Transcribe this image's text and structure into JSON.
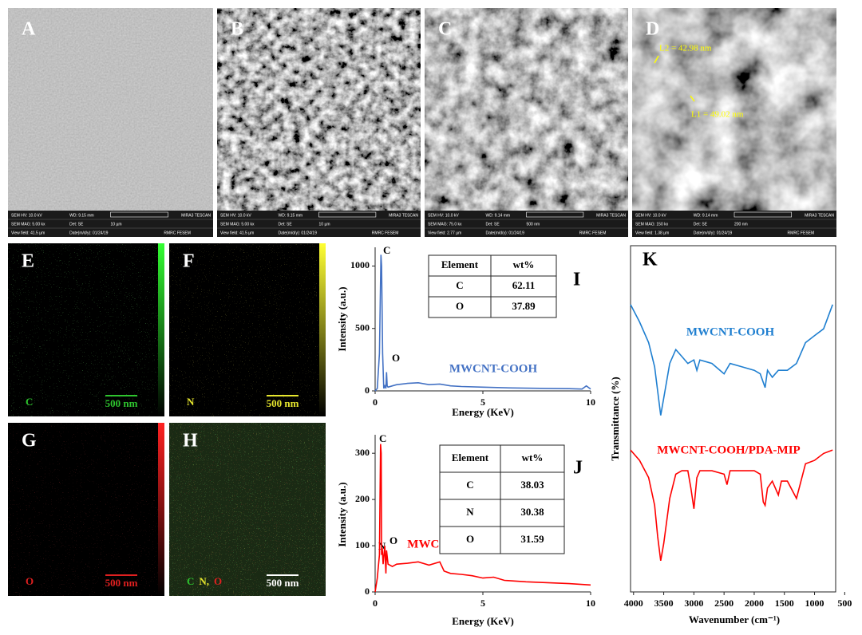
{
  "sem_panels": [
    {
      "label": "A",
      "info": [
        [
          "SEM HV: 10.0 kV",
          "WD: 9.15 mm",
          "MIRA3 TESCAN"
        ],
        [
          "SEM MAG: 5.00 kx",
          "Det: SE",
          "10 µm"
        ],
        [
          "View field: 41.5 µm",
          "Date(m/d/y): 01/24/19",
          "RMRC FESEM"
        ]
      ]
    },
    {
      "label": "B",
      "info": [
        [
          "SEM HV: 10.0 kV",
          "WD: 9.15 mm",
          "MIRA3 TESCAN"
        ],
        [
          "SEM MAG: 5.00 kx",
          "Det: SE",
          "10 µm"
        ],
        [
          "View field: 41.5 µm",
          "Date(m/d/y): 01/24/19",
          "RMRC FESEM"
        ]
      ]
    },
    {
      "label": "C",
      "info": [
        [
          "SEM HV: 10.0 kV",
          "WD: 9.14 mm",
          "MIRA3 TESCAN"
        ],
        [
          "SEM MAG: 75.0 kx",
          "Det: SE",
          "500 nm"
        ],
        [
          "View field: 2.77 µm",
          "Date(m/d/y): 01/24/19",
          "RMRC FESEM"
        ]
      ]
    },
    {
      "label": "D",
      "info": [
        [
          "SEM HV: 10.0 kV",
          "WD: 9.14 mm",
          "MIRA3 TESCAN"
        ],
        [
          "SEM MAG: 150 kx",
          "Det: SE",
          "200 nm"
        ],
        [
          "View field: 1.38 µm",
          "Date(m/d/y): 01/24/19",
          "RMRC FESEM"
        ]
      ],
      "measurements": [
        "L2 = 42.98 nm",
        "L1 = 49.02 nm"
      ]
    }
  ],
  "map_panels": [
    {
      "label": "E",
      "element": [
        {
          "text": "C",
          "color": "#2ec42e"
        }
      ],
      "scale": "500 nm",
      "color": "#2ec42e"
    },
    {
      "label": "F",
      "element": [
        {
          "text": "N",
          "color": "#e6e62e"
        }
      ],
      "scale": "500 nm",
      "color": "#e6e62e"
    },
    {
      "label": "G",
      "element": [
        {
          "text": "O",
          "color": "#e02020"
        }
      ],
      "scale": "500 nm",
      "color": "#e02020"
    },
    {
      "label": "H",
      "element": [
        {
          "text": "C",
          "color": "#2ec42e"
        },
        {
          "text": "N,",
          "color": "#e6e62e"
        },
        {
          "text": "O",
          "color": "#e02020"
        }
      ],
      "scale": "500 nm"
    }
  ],
  "chart_data": [
    {
      "type": "line",
      "panel_label": "I",
      "x_label": "Energy (KeV)",
      "y_label": "Intensity (a.u.)",
      "xlim": [
        0,
        10
      ],
      "ylim": [
        0,
        1150
      ],
      "xticks": [
        0,
        5,
        10
      ],
      "yticks": [
        0,
        500,
        1000
      ],
      "annotations": [
        "C",
        "O"
      ],
      "table": {
        "header": [
          "Element",
          "wt%"
        ],
        "rows": [
          [
            "C",
            62.11
          ],
          [
            "O",
            37.89
          ]
        ]
      },
      "series": [
        {
          "name": "MWCNT-COOH",
          "color": "#4472c4",
          "x": [
            0,
            0.1,
            0.2,
            0.27,
            0.3,
            0.35,
            0.4,
            0.45,
            0.5,
            0.53,
            0.56,
            0.6,
            0.8,
            1,
            1.5,
            2,
            2.5,
            3,
            3.5,
            4,
            5,
            6,
            7,
            8,
            9,
            9.6,
            9.8,
            10
          ],
          "values": [
            0,
            20,
            300,
            1090,
            1000,
            300,
            20,
            40,
            20,
            150,
            40,
            30,
            40,
            50,
            60,
            65,
            50,
            55,
            40,
            35,
            30,
            25,
            22,
            20,
            18,
            15,
            40,
            15
          ]
        }
      ]
    },
    {
      "type": "line",
      "panel_label": "J",
      "x_label": "Energy (KeV)",
      "y_label": "Intensity (a.u.)",
      "xlim": [
        0,
        10
      ],
      "ylim": [
        0,
        340
      ],
      "xticks": [
        0,
        5,
        10
      ],
      "yticks": [
        0,
        100,
        200,
        300
      ],
      "annotations": [
        "C",
        "N",
        "O"
      ],
      "table": {
        "header": [
          "Element",
          "wt%"
        ],
        "rows": [
          [
            "C",
            38.03
          ],
          [
            "N",
            30.38
          ],
          [
            "O",
            31.59
          ]
        ]
      },
      "series": [
        {
          "name": "MWCNT-COOH/PDA-MIP",
          "color": "#ff0000",
          "x": [
            0,
            0.1,
            0.2,
            0.25,
            0.28,
            0.3,
            0.33,
            0.37,
            0.45,
            0.5,
            0.53,
            0.6,
            0.8,
            1,
            1.5,
            2,
            2.5,
            3,
            3.2,
            3.5,
            4,
            4.5,
            5,
            5.5,
            6,
            7,
            8,
            9,
            10
          ],
          "values": [
            0,
            30,
            80,
            320,
            300,
            80,
            95,
            60,
            100,
            40,
            90,
            60,
            55,
            60,
            62,
            65,
            58,
            65,
            45,
            40,
            38,
            35,
            30,
            32,
            25,
            22,
            20,
            18,
            15
          ]
        }
      ]
    },
    {
      "type": "line",
      "panel_label": "K",
      "x_label": "Wavenumber (cm⁻¹)",
      "y_label": "Transmittance (%)",
      "xlim": [
        4050,
        650
      ],
      "ylim": [
        0,
        100
      ],
      "xticks": [
        4000,
        3500,
        3000,
        2500,
        2000,
        1500,
        1000,
        500
      ],
      "series": [
        {
          "name": "MWCNT-COOH",
          "color": "#1f7fd0",
          "x": [
            4050,
            3900,
            3750,
            3650,
            3600,
            3550,
            3500,
            3400,
            3300,
            3200,
            3100,
            3000,
            2950,
            2900,
            2700,
            2500,
            2400,
            2200,
            2000,
            1900,
            1820,
            1780,
            1700,
            1600,
            1450,
            1300,
            1150,
            1000,
            850,
            700
          ],
          "values": [
            83,
            78,
            72,
            65,
            58,
            51,
            56,
            66,
            70,
            68,
            66,
            67,
            64,
            67,
            66,
            63,
            66,
            65,
            64,
            63,
            59,
            64,
            62,
            64,
            64,
            66,
            72,
            74,
            76,
            83
          ]
        },
        {
          "name": "MWCNT-COOH/PDA-MIP",
          "color": "#ff0000",
          "x": [
            4050,
            3900,
            3750,
            3650,
            3600,
            3550,
            3500,
            3400,
            3300,
            3200,
            3100,
            3050,
            3000,
            2950,
            2900,
            2700,
            2500,
            2450,
            2400,
            2200,
            2000,
            1900,
            1850,
            1820,
            1780,
            1700,
            1600,
            1550,
            1450,
            1300,
            1150,
            1000,
            850,
            700
          ],
          "values": [
            41,
            38,
            33,
            25,
            16,
            9,
            14,
            27,
            34,
            35,
            35,
            30,
            24,
            33,
            35,
            35,
            34,
            31,
            35,
            35,
            35,
            34,
            26,
            25,
            30,
            32,
            28,
            32,
            32,
            27,
            37,
            38,
            40,
            41
          ]
        }
      ]
    }
  ]
}
